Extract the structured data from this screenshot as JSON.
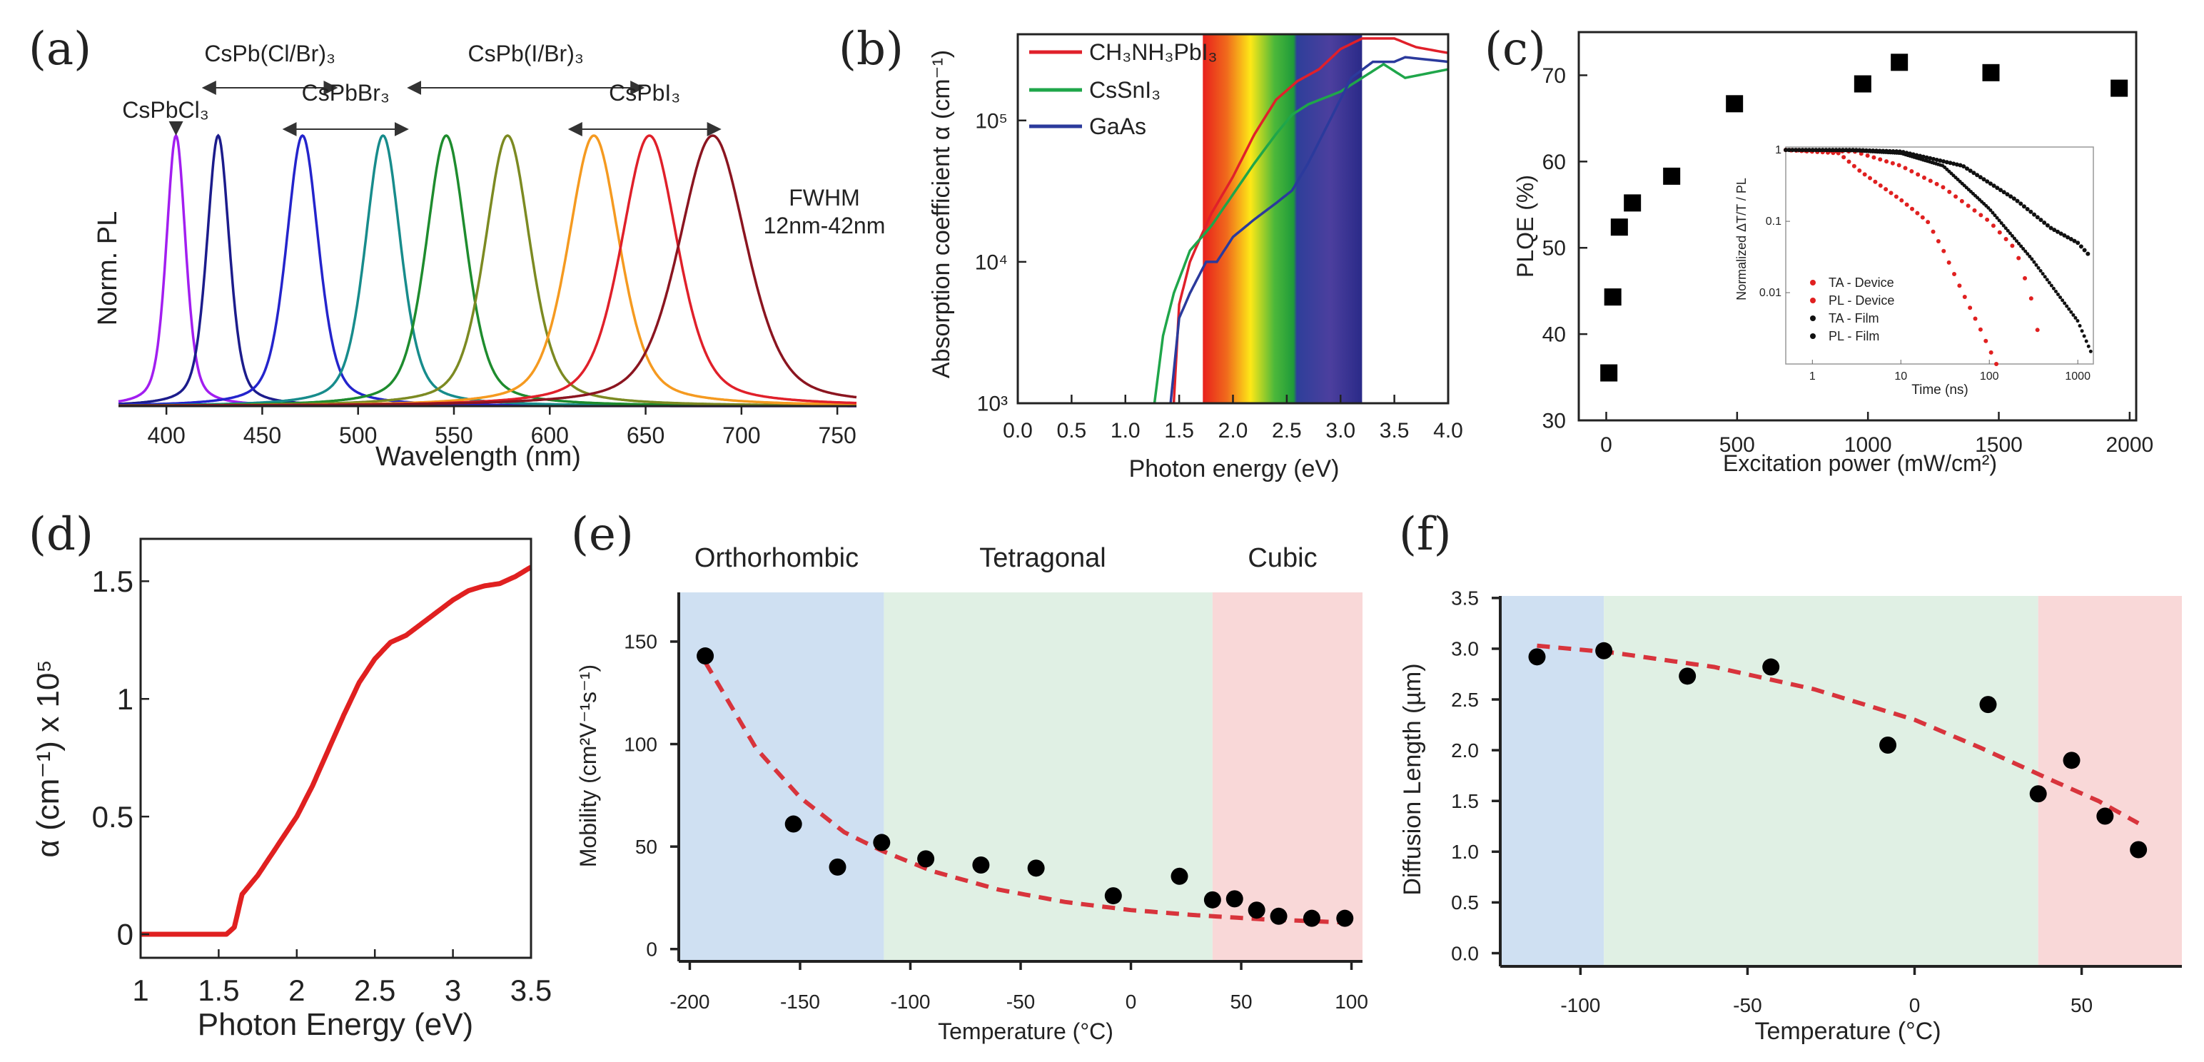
{
  "chart_data": [
    {
      "panel_label": "(a)",
      "type": "line",
      "title": "",
      "xlabel": "Wavelength (nm)",
      "ylabel": "Norm. PL",
      "xlim": [
        375,
        760
      ],
      "ylim": [
        0,
        1
      ],
      "xticks": [
        400,
        450,
        500,
        550,
        600,
        650,
        700,
        750
      ],
      "xtick_labels": [
        "400",
        "450",
        "500",
        "550",
        "600",
        "650",
        "700",
        "750"
      ],
      "series": [
        {
          "name": "CsPbCl3",
          "peak": 405,
          "fwhm": 12,
          "color": "#a21ef0"
        },
        {
          "name": "427 nm",
          "peak": 427,
          "fwhm": 14,
          "color": "#1c1c8c"
        },
        {
          "name": "471 nm",
          "peak": 471,
          "fwhm": 20,
          "color": "#2424cc"
        },
        {
          "name": "CsPbBr3 513 nm",
          "peak": 513,
          "fwhm": 22,
          "color": "#178c8c"
        },
        {
          "name": "546 nm",
          "peak": 546,
          "fwhm": 25,
          "color": "#1e8c2e"
        },
        {
          "name": "578 nm",
          "peak": 578,
          "fwhm": 28,
          "color": "#7c8a22"
        },
        {
          "name": "623 nm",
          "peak": 623,
          "fwhm": 32,
          "color": "#f59a20"
        },
        {
          "name": "652 nm",
          "peak": 652,
          "fwhm": 35,
          "color": "#e0202a"
        },
        {
          "name": "CsPbI3 685 nm",
          "peak": 685,
          "fwhm": 42,
          "color": "#8b1520"
        }
      ],
      "annotations": [
        {
          "text": "CsPbCl₃",
          "at": 405
        },
        {
          "text": "CsPb(Cl/Br)₃",
          "from": 420,
          "to": 488
        },
        {
          "text": "CsPbBr₃",
          "from": 462,
          "to": 525
        },
        {
          "text": "CsPb(I/Br)₃",
          "from": 527,
          "to": 648
        },
        {
          "text": "CsPbI₃",
          "from": 611,
          "to": 688
        }
      ],
      "note": [
        "FWHM",
        "12nm-42nm"
      ]
    },
    {
      "panel_label": "(b)",
      "type": "line",
      "xlabel": "Photon energy (eV)",
      "ylabel": "Absorption coefficient α (cm⁻¹)",
      "xlim": [
        0,
        4
      ],
      "ylim": [
        1000,
        407000
      ],
      "yscale": "log",
      "xticks": [
        0,
        0.5,
        1,
        1.5,
        2,
        2.5,
        3,
        3.5,
        4
      ],
      "xtick_labels": [
        "0.0",
        "0.5",
        "1.0",
        "1.5",
        "2.0",
        "2.5",
        "3.0",
        "3.5",
        "4.0"
      ],
      "yticks": [
        1000,
        10000,
        100000
      ],
      "ytick_labels": [
        "10³",
        "10⁴",
        "10⁵"
      ],
      "visible_band_ev": [
        1.72,
        3.2
      ],
      "legend_position": "top-left",
      "series": [
        {
          "name": "CH₃NH₃PbI₃",
          "color": "#e0202a",
          "x": [
            1.45,
            1.5,
            1.6,
            1.7,
            1.8,
            2.0,
            2.2,
            2.4,
            2.6,
            2.8,
            3.0,
            3.2,
            3.5,
            3.7,
            4.0
          ],
          "y": [
            1000,
            5000,
            10000,
            15000,
            22000,
            40000,
            80000,
            140000,
            190000,
            230000,
            320000,
            380000,
            380000,
            330000,
            300000
          ]
        },
        {
          "name": "CsSnI₃",
          "color": "#1fa64a",
          "x": [
            1.27,
            1.35,
            1.45,
            1.6,
            1.8,
            2.0,
            2.2,
            2.4,
            2.55,
            2.7,
            3.0,
            3.2,
            3.4,
            3.6,
            4.0
          ],
          "y": [
            1000,
            3000,
            6000,
            12000,
            18000,
            30000,
            50000,
            80000,
            110000,
            130000,
            160000,
            200000,
            250000,
            200000,
            230000
          ]
        },
        {
          "name": "GaAs",
          "color": "#2b3a9c",
          "x": [
            1.42,
            1.5,
            1.6,
            1.75,
            1.85,
            2.0,
            2.2,
            2.4,
            2.55,
            2.7,
            2.9,
            3.1,
            3.3,
            3.5,
            3.6,
            4.0
          ],
          "y": [
            1000,
            4000,
            6000,
            10000,
            10000,
            15000,
            20000,
            26000,
            32000,
            50000,
            100000,
            200000,
            260000,
            260000,
            280000,
            260000
          ]
        }
      ]
    },
    {
      "panel_label": "(c)",
      "type": "scatter",
      "xlabel": "Excitation power (mW/cm²)",
      "ylabel": "PLQE (%)",
      "xlim": [
        -105,
        2025
      ],
      "ylim": [
        30,
        75
      ],
      "xticks": [
        0,
        500,
        1000,
        1500,
        2000
      ],
      "xtick_labels": [
        "0",
        "500",
        "1000",
        "1500",
        "2000"
      ],
      "yticks": [
        30,
        40,
        50,
        60,
        70
      ],
      "ytick_labels": [
        "30",
        "40",
        "50",
        "60",
        "70"
      ],
      "x": [
        10,
        25,
        50,
        100,
        250,
        490,
        980,
        1120,
        1470,
        1960
      ],
      "y": [
        35.5,
        44.3,
        52.4,
        55.2,
        58.3,
        66.7,
        69.0,
        71.5,
        70.3,
        68.5
      ],
      "inset": {
        "type": "scatter",
        "xlabel": "Time (ns)",
        "ylabel": "Normalized ΔT/T / PL",
        "xscale": "log",
        "yscale": "log",
        "xlim": [
          0.5,
          1500
        ],
        "ylim": [
          0.001,
          1.1
        ],
        "xticks": [
          1,
          10,
          100,
          1000
        ],
        "xtick_labels": [
          "1",
          "10",
          "100",
          "1000"
        ],
        "yticks": [
          1,
          0.1,
          0.01
        ],
        "ytick_labels": [
          "1",
          "0.1",
          "0.01"
        ],
        "legend_position": "bottom-left",
        "series": [
          {
            "name": "TA - Device",
            "color": "#e02020",
            "x": [
              0.5,
              2,
              3.5,
              10,
              20,
              30,
              50,
              80,
              120
            ],
            "y": [
              1,
              0.9,
              0.5,
              0.2,
              0.1,
              0.04,
              0.01,
              0.003,
              0.001
            ]
          },
          {
            "name": "PL - Device",
            "color": "#e02020",
            "x": [
              0.5,
              3,
              10,
              30,
              100,
              200,
              300,
              350
            ],
            "y": [
              1,
              0.95,
              0.6,
              0.3,
              0.1,
              0.04,
              0.008,
              0.003
            ]
          },
          {
            "name": "TA - Film",
            "color": "#111111",
            "x": [
              0.5,
              3,
              10,
              30,
              100,
              300,
              1000,
              1400
            ],
            "y": [
              1,
              0.98,
              0.9,
              0.6,
              0.15,
              0.03,
              0.004,
              0.0015
            ]
          },
          {
            "name": "PL - Film",
            "color": "#111111",
            "x": [
              0.5,
              3,
              10,
              50,
              200,
              500,
              1000,
              1300
            ],
            "y": [
              1,
              1,
              0.95,
              0.6,
              0.2,
              0.08,
              0.05,
              0.035
            ]
          }
        ]
      }
    },
    {
      "panel_label": "(d)",
      "type": "line",
      "xlabel": "Photon Energy (eV)",
      "ylabel": "α (cm⁻¹) x 10⁵",
      "xlim": [
        1,
        3.5
      ],
      "ylim": [
        -0.1,
        1.68
      ],
      "xticks": [
        1,
        1.5,
        2,
        2.5,
        3,
        3.5
      ],
      "xtick_labels": [
        "1",
        "1.5",
        "2",
        "2.5",
        "3",
        "3.5"
      ],
      "yticks": [
        0,
        0.5,
        1,
        1.5
      ],
      "ytick_labels": [
        "0",
        "0.5",
        "1",
        "1.5"
      ],
      "series": [
        {
          "name": "absorption",
          "color": "#e02020",
          "x": [
            1,
            1.55,
            1.6,
            1.65,
            1.75,
            1.9,
            2.0,
            2.1,
            2.2,
            2.3,
            2.4,
            2.5,
            2.6,
            2.7,
            2.8,
            2.9,
            3.0,
            3.1,
            3.2,
            3.3,
            3.4,
            3.5
          ],
          "y": [
            0,
            0,
            0.03,
            0.17,
            0.25,
            0.4,
            0.5,
            0.63,
            0.78,
            0.93,
            1.07,
            1.17,
            1.24,
            1.27,
            1.32,
            1.37,
            1.42,
            1.46,
            1.48,
            1.49,
            1.52,
            1.56
          ]
        }
      ]
    },
    {
      "panel_label": "(e)",
      "type": "scatter",
      "xlabel": "Temperature (°C)",
      "ylabel": "Mobility (cm²V⁻¹s⁻¹)",
      "xlim": [
        -205,
        105
      ],
      "ylim": [
        -6,
        174
      ],
      "xticks": [
        -200,
        -150,
        -100,
        -50,
        0,
        50,
        100
      ],
      "xtick_labels": [
        "-200",
        "-150",
        "-100",
        "-50",
        "0",
        "50",
        "100"
      ],
      "yticks": [
        0,
        50,
        100,
        150
      ],
      "ytick_labels": [
        "0",
        "50",
        "100",
        "150"
      ],
      "phases": [
        {
          "name": "Orthorhombic",
          "from": -205,
          "to": -112,
          "color": "#cfe0f2"
        },
        {
          "name": "Tetragonal",
          "from": -112,
          "to": 37,
          "color": "#e0f0e4"
        },
        {
          "name": "Cubic",
          "from": 37,
          "to": 105,
          "color": "#f9d8d8"
        }
      ],
      "x": [
        -193,
        -153,
        -133,
        -113,
        -93,
        -68,
        -43,
        -8,
        22,
        37,
        47,
        57,
        67,
        82,
        97
      ],
      "y": [
        143,
        61,
        40,
        52,
        44,
        41,
        39.5,
        26,
        35.5,
        24,
        24.5,
        19,
        16,
        15,
        15
      ],
      "fit": {
        "x": [
          -193,
          -170,
          -150,
          -130,
          -113,
          -90,
          -60,
          -30,
          0,
          30,
          60,
          97
        ],
        "y": [
          140,
          98,
          74,
          57,
          48,
          38,
          29,
          23,
          19,
          16.5,
          14.5,
          13
        ]
      }
    },
    {
      "panel_label": "(f)",
      "type": "scatter",
      "xlabel": "Temperature (°C)",
      "ylabel": "Diffusion Length (µm)",
      "xlim": [
        -124,
        80
      ],
      "ylim": [
        -0.13,
        3.52
      ],
      "xticks": [
        -100,
        -50,
        0,
        50
      ],
      "xtick_labels": [
        "-100",
        "-50",
        "0",
        "50"
      ],
      "yticks": [
        0,
        0.5,
        1,
        1.5,
        2,
        2.5,
        3,
        3.5
      ],
      "ytick_labels": [
        "0.0",
        "0.5",
        "1.0",
        "1.5",
        "2.0",
        "2.5",
        "3.0",
        "3.5"
      ],
      "phases": [
        {
          "from": -124,
          "to": -93,
          "color": "#cfe0f2"
        },
        {
          "from": -93,
          "to": 37,
          "color": "#e0f0e4"
        },
        {
          "from": 37,
          "to": 80,
          "color": "#f9d8d8"
        }
      ],
      "x": [
        -113,
        -93,
        -68,
        -43,
        -8,
        22,
        37,
        47,
        57,
        67
      ],
      "y": [
        2.92,
        2.98,
        2.73,
        2.82,
        2.05,
        2.45,
        1.57,
        1.9,
        1.35,
        1.02
      ],
      "fit": {
        "x": [
          -113,
          -90,
          -60,
          -30,
          0,
          20,
          40,
          55,
          67
        ],
        "y": [
          3.03,
          2.96,
          2.82,
          2.6,
          2.3,
          2.02,
          1.72,
          1.5,
          1.28
        ]
      }
    }
  ]
}
